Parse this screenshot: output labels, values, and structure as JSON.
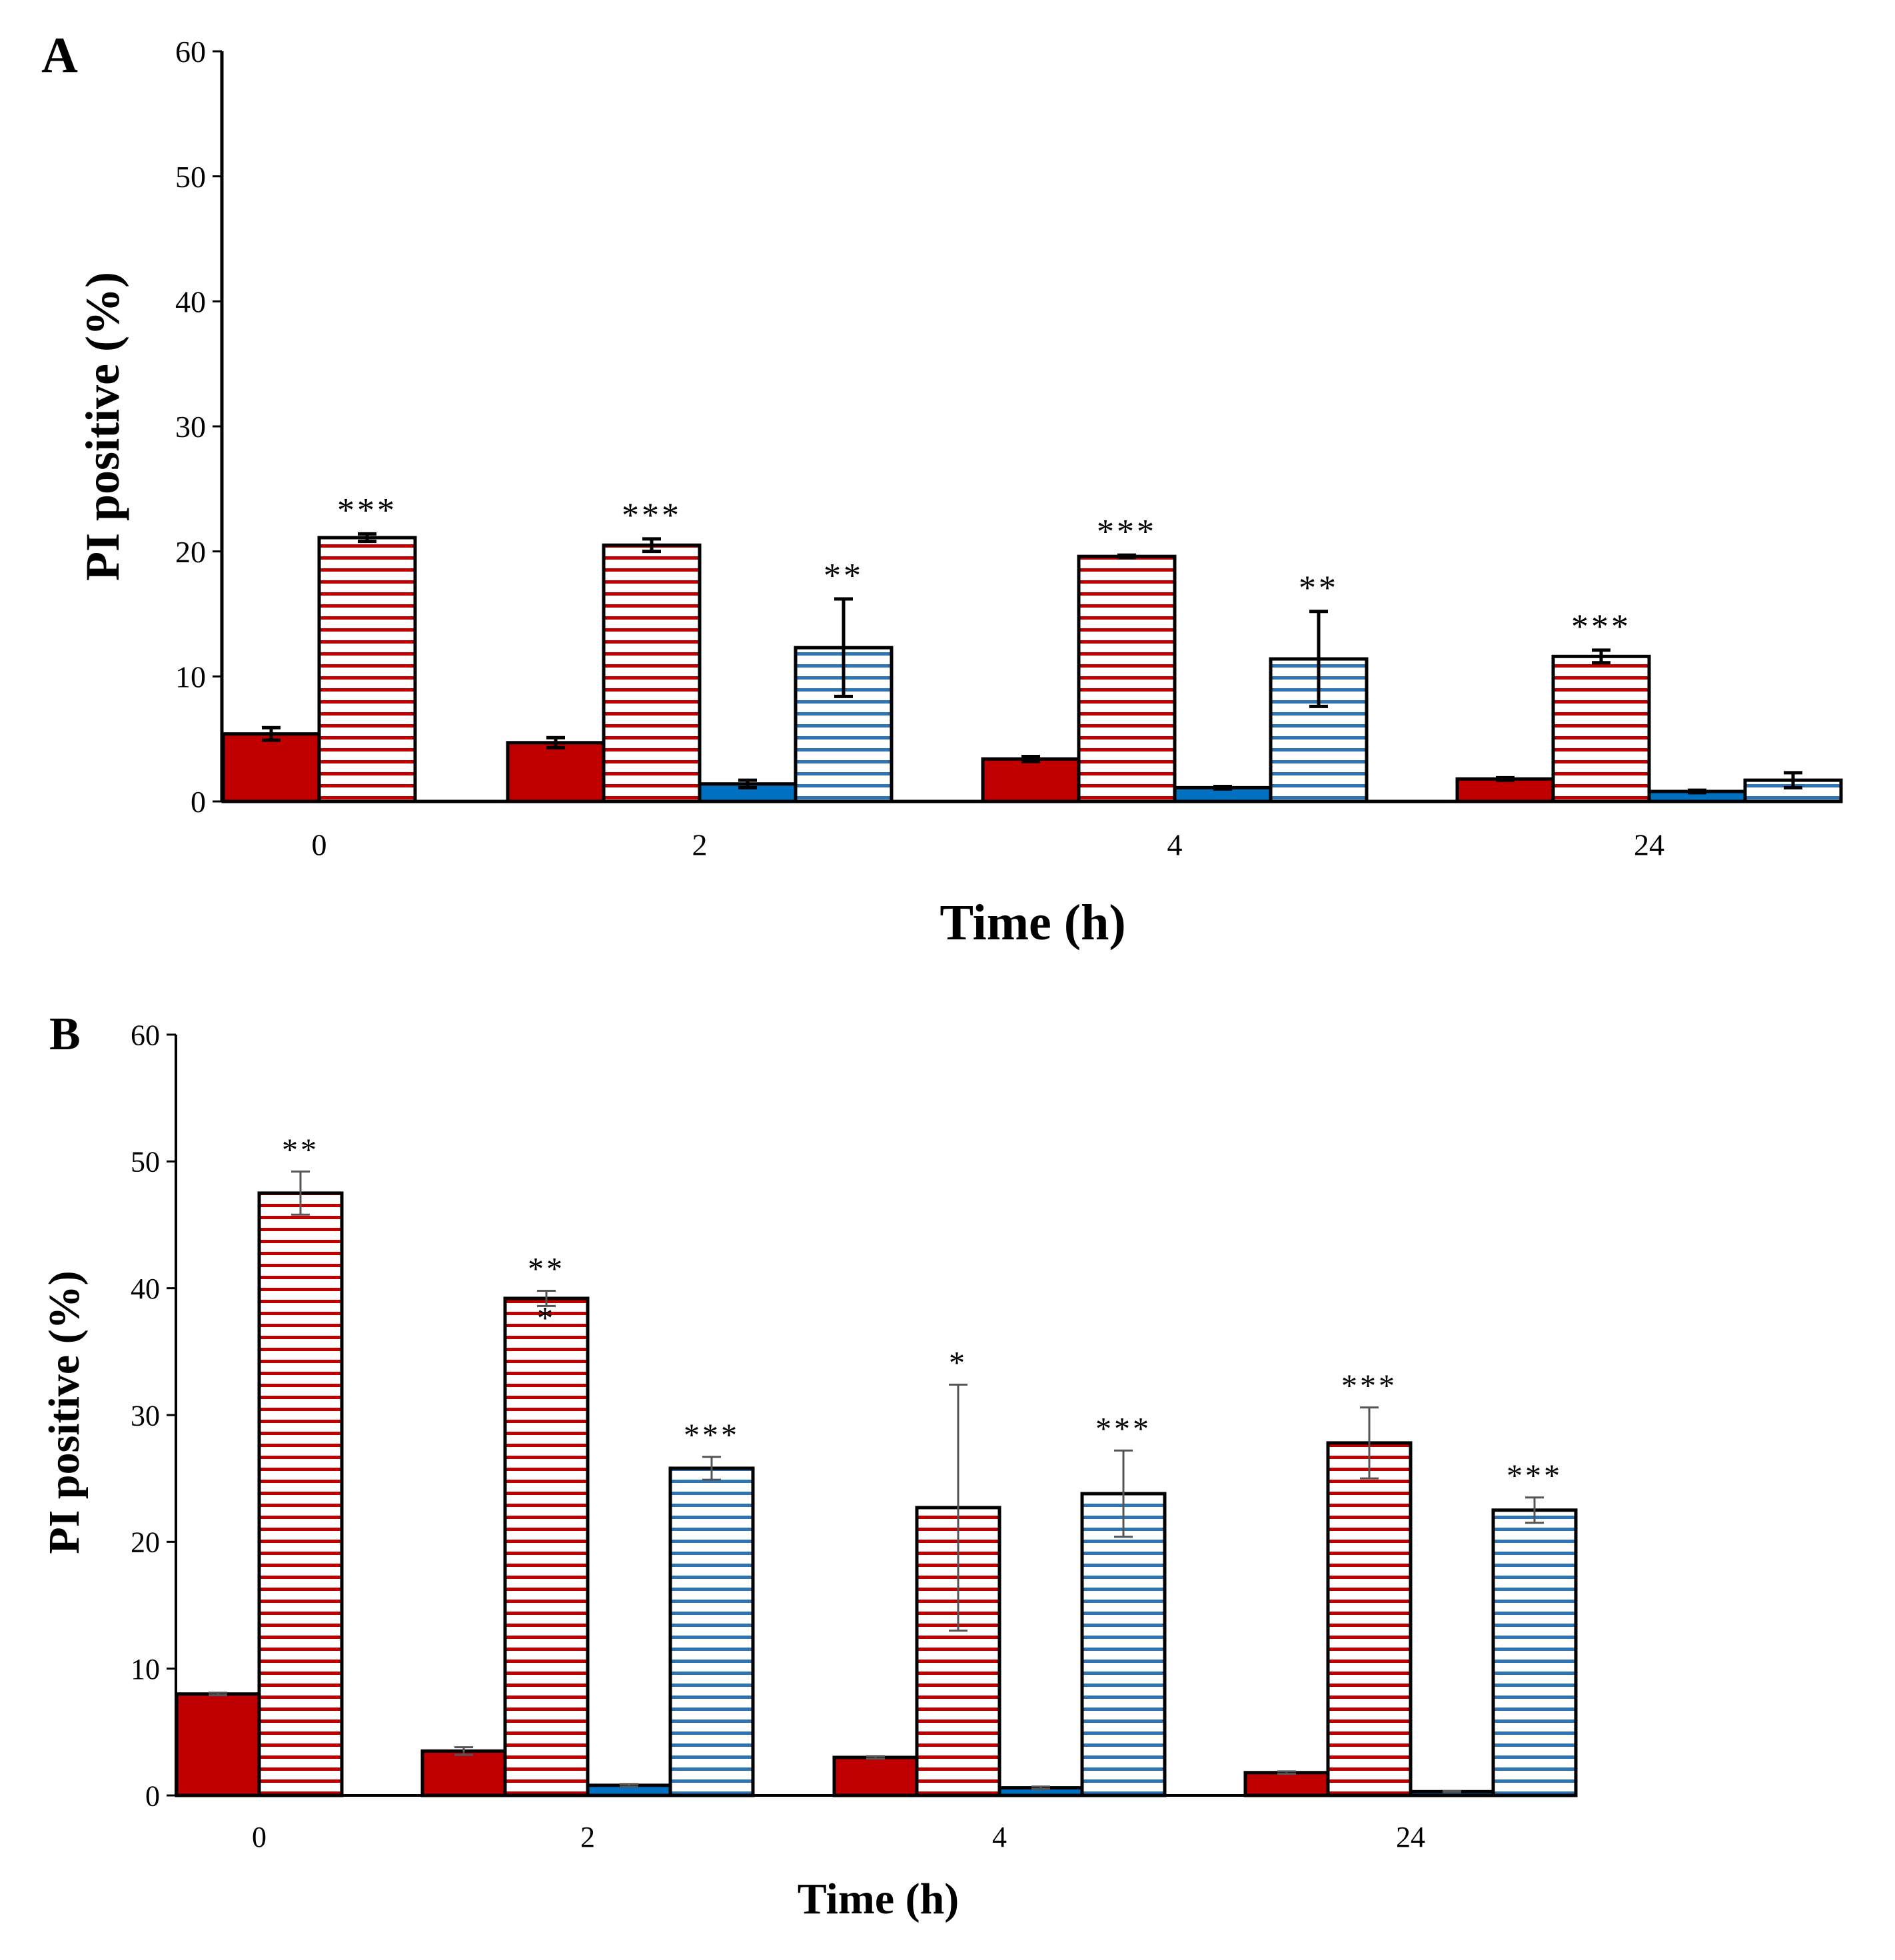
{
  "chart_data": [
    {
      "panel_label": "A",
      "type": "bar",
      "categories": [
        "0",
        "2",
        "4",
        "24"
      ],
      "xlabel": "Time (h)",
      "ylabel": "PI positive (%)",
      "ylim": [
        0,
        60
      ],
      "yticks": [
        "0",
        "10",
        "20",
        "30",
        "40",
        "50",
        "60"
      ],
      "series": [
        {
          "color": "#C00000",
          "fill": "solid",
          "values": [
            5.4,
            4.7,
            3.4,
            1.8
          ],
          "errors": [
            0.5,
            0.4,
            0.2,
            0.1
          ]
        },
        {
          "color": "#C00000",
          "fill": "striped",
          "values": [
            21.1,
            20.5,
            19.6,
            11.6
          ],
          "errors": [
            0.3,
            0.5,
            0.1,
            0.5
          ]
        },
        {
          "color": "#0070C0",
          "fill": "solid",
          "values": [
            null,
            1.4,
            1.1,
            0.8
          ],
          "errors": [
            null,
            0.3,
            0.1,
            0.1
          ]
        },
        {
          "color": "#5B9BD5",
          "fill": "striped",
          "values": [
            null,
            12.3,
            11.4,
            1.7
          ],
          "errors": [
            null,
            3.9,
            3.8,
            0.6
          ]
        }
      ],
      "annotations": [
        {
          "category": 0,
          "series": 1,
          "text": "***"
        },
        {
          "category": 1,
          "series": 1,
          "text": "***"
        },
        {
          "category": 1,
          "series": 3,
          "text": "**"
        },
        {
          "category": 2,
          "series": 1,
          "text": "***"
        },
        {
          "category": 2,
          "series": 3,
          "text": "**"
        },
        {
          "category": 3,
          "series": 1,
          "text": "***"
        }
      ],
      "legend": "none",
      "grid": false
    },
    {
      "panel_label": "B",
      "type": "bar",
      "categories": [
        "0",
        "2",
        "4",
        "24"
      ],
      "xlabel": "Time (h)",
      "ylabel": "PI positive (%)",
      "ylim": [
        0,
        60
      ],
      "yticks": [
        "0",
        "10",
        "20",
        "30",
        "40",
        "50",
        "60"
      ],
      "series": [
        {
          "color": "#C00000",
          "fill": "solid",
          "values": [
            8.0,
            3.5,
            3.0,
            1.8
          ],
          "errors": [
            0.1,
            0.3,
            0.1,
            0.1
          ]
        },
        {
          "color": "#C00000",
          "fill": "striped",
          "values": [
            47.5,
            39.2,
            22.7,
            27.8
          ],
          "errors": [
            1.7,
            0.6,
            9.7,
            2.8
          ]
        },
        {
          "color": "#0070C0",
          "fill": "solid",
          "values": [
            null,
            0.8,
            0.6,
            0.3
          ],
          "errors": [
            null,
            0.1,
            0.1,
            0.05
          ]
        },
        {
          "color": "#5B9BD5",
          "fill": "striped",
          "values": [
            null,
            25.8,
            23.8,
            22.5
          ],
          "errors": [
            null,
            0.9,
            3.4,
            1.0
          ]
        }
      ],
      "annotations": [
        {
          "category": 0,
          "series": 1,
          "text": "**"
        },
        {
          "category": 1,
          "series": 1,
          "text": "**"
        },
        {
          "category": 1,
          "series": 1,
          "text": "*",
          "inside": true
        },
        {
          "category": 1,
          "series": 3,
          "text": "***"
        },
        {
          "category": 2,
          "series": 1,
          "text": "*"
        },
        {
          "category": 2,
          "series": 3,
          "text": "***"
        },
        {
          "category": 3,
          "series": 1,
          "text": "***"
        },
        {
          "category": 3,
          "series": 3,
          "text": "***"
        }
      ],
      "legend": "none",
      "grid": false
    }
  ]
}
